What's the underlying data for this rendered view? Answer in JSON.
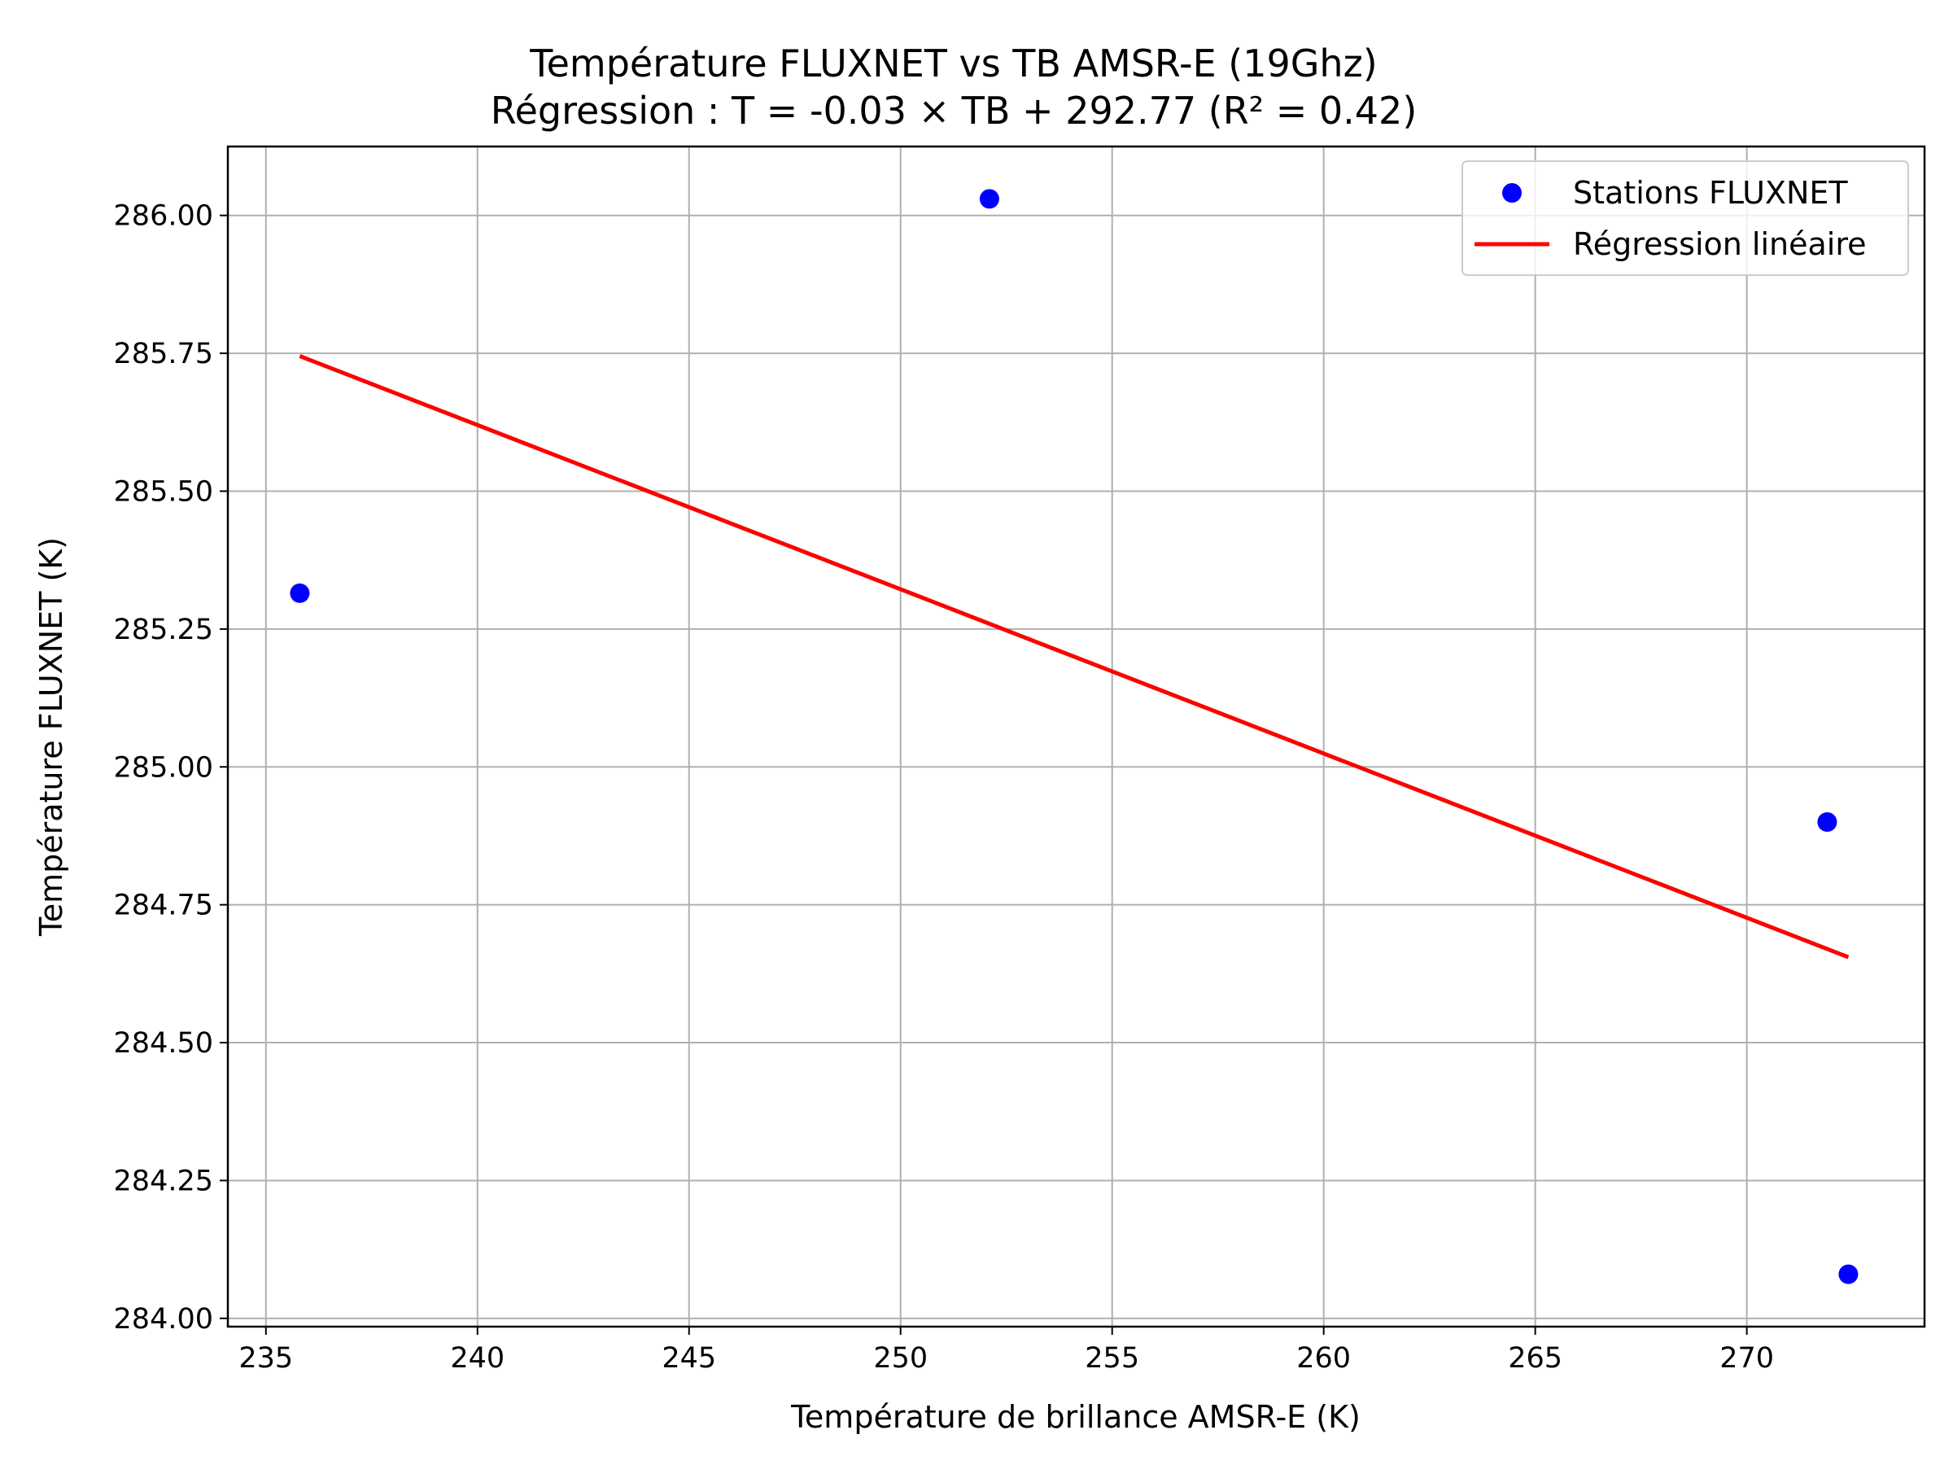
{
  "chart_data": {
    "type": "scatter",
    "title": "Température FLUXNET vs TB AMSR-E (19Ghz)",
    "subtitle": "Régression : T = -0.03 × TB + 292.77 (R² = 0.42)",
    "xlabel": "Température de brillance AMSR-E (K)",
    "ylabel": "Température FLUXNET (K)",
    "xlim": [
      234.1,
      274.2
    ],
    "ylim": [
      283.985,
      286.125
    ],
    "x_ticks": [
      235,
      240,
      245,
      250,
      255,
      260,
      265,
      270
    ],
    "y_ticks": [
      284.0,
      284.25,
      284.5,
      284.75,
      285.0,
      285.25,
      285.5,
      285.75,
      286.0
    ],
    "x_tick_labels": [
      "235",
      "240",
      "245",
      "250",
      "255",
      "260",
      "265",
      "270"
    ],
    "y_tick_labels": [
      "284.00",
      "284.25",
      "284.50",
      "284.75",
      "285.00",
      "285.25",
      "285.50",
      "285.75",
      "286.00"
    ],
    "grid": true,
    "legend_position": "top-right",
    "series": [
      {
        "name": "Stations FLUXNET",
        "kind": "scatter",
        "color": "#0000ff",
        "points": [
          {
            "x": 235.8,
            "y": 285.315
          },
          {
            "x": 252.1,
            "y": 286.03
          },
          {
            "x": 271.9,
            "y": 284.9
          },
          {
            "x": 272.4,
            "y": 284.08
          }
        ]
      },
      {
        "name": "Régression linéaire",
        "kind": "line",
        "color": "#ff0000",
        "points": [
          {
            "x": 235.8,
            "y": 285.745
          },
          {
            "x": 272.4,
            "y": 284.655
          }
        ]
      }
    ]
  }
}
